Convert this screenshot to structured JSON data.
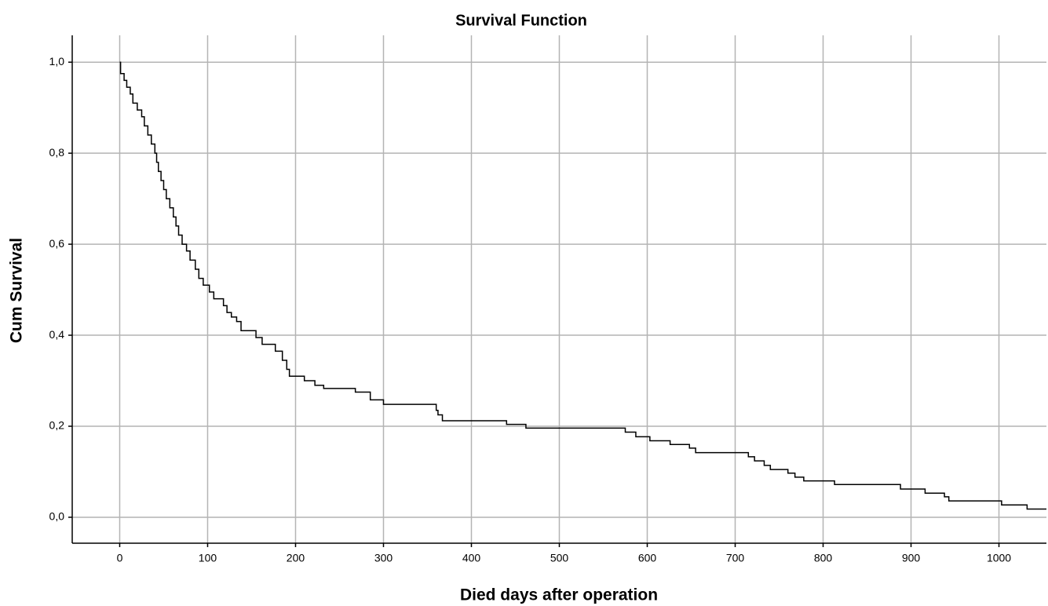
{
  "chart_data": {
    "type": "step",
    "title": "Survival Function",
    "x_label": "Died days after operation",
    "y_label": "Cum Survival",
    "series": [
      {
        "name": "Survival",
        "color": "#000000",
        "x": [
          0,
          1,
          5,
          8,
          12,
          15,
          20,
          25,
          28,
          32,
          36,
          40,
          42,
          44,
          47,
          50,
          53,
          57,
          61,
          64,
          67,
          71,
          76,
          80,
          86,
          90,
          95,
          102,
          107,
          118,
          122,
          127,
          133,
          138,
          155,
          162,
          177,
          185,
          190,
          193,
          210,
          222,
          232,
          268,
          285,
          300,
          360,
          362,
          367,
          440,
          462,
          575,
          587,
          603,
          626,
          648,
          655,
          715,
          722,
          733,
          740,
          760,
          768,
          778,
          813,
          888,
          916,
          938,
          943,
          1003,
          1032,
          1054
        ],
        "values": [
          1.0,
          0.975,
          0.96,
          0.945,
          0.93,
          0.91,
          0.895,
          0.88,
          0.86,
          0.84,
          0.82,
          0.8,
          0.78,
          0.76,
          0.74,
          0.72,
          0.7,
          0.68,
          0.66,
          0.64,
          0.62,
          0.6,
          0.585,
          0.565,
          0.545,
          0.525,
          0.51,
          0.495,
          0.48,
          0.465,
          0.45,
          0.44,
          0.43,
          0.41,
          0.395,
          0.38,
          0.365,
          0.345,
          0.325,
          0.31,
          0.3,
          0.29,
          0.283,
          0.275,
          0.258,
          0.248,
          0.235,
          0.225,
          0.212,
          0.204,
          0.196,
          0.187,
          0.177,
          0.168,
          0.16,
          0.152,
          0.142,
          0.133,
          0.124,
          0.114,
          0.105,
          0.097,
          0.088,
          0.08,
          0.072,
          0.062,
          0.053,
          0.045,
          0.036,
          0.027,
          0.018,
          0.018
        ]
      }
    ],
    "xlim": [
      -54,
      1054
    ],
    "xticks": [
      0,
      100,
      200,
      300,
      400,
      500,
      600,
      700,
      800,
      900,
      1000
    ],
    "ylim": [
      -0.057,
      1.059
    ],
    "yticks": [
      {
        "value": 0,
        "label": "0,0"
      },
      {
        "value": 0.2,
        "label": "0,2"
      },
      {
        "value": 0.4,
        "label": "0,4"
      },
      {
        "value": 0.6,
        "label": "0,6"
      },
      {
        "value": 0.8,
        "label": "0,8"
      },
      {
        "value": 1,
        "label": "1,0"
      }
    ],
    "grid": true
  }
}
